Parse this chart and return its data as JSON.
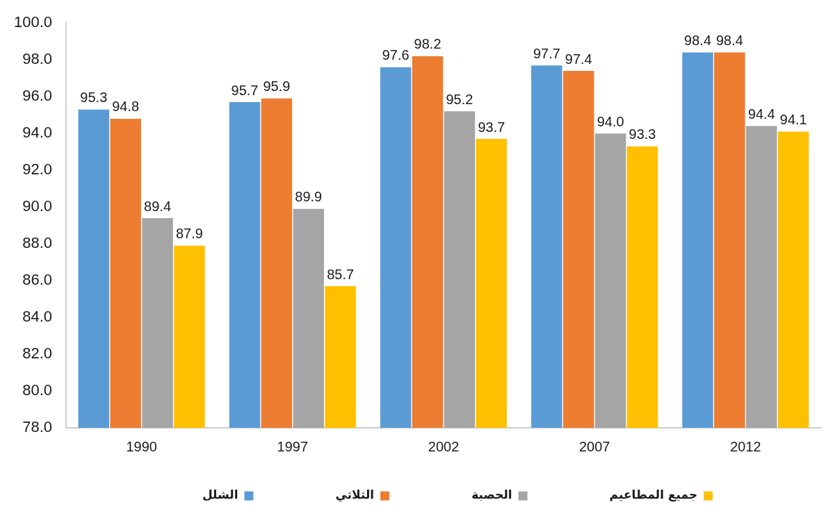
{
  "chart_data": {
    "type": "bar",
    "categories": [
      "1990",
      "1997",
      "2002",
      "2007",
      "2012"
    ],
    "series": [
      {
        "name": "الشلل",
        "color": "#5b9bd5",
        "values": [
          95.3,
          95.7,
          97.6,
          97.7,
          98.4
        ],
        "value_labels": [
          "95.3",
          "95.7",
          "97.6",
          "97.7",
          "98.4"
        ]
      },
      {
        "name": "الثلاثي",
        "color": "#ed7d31",
        "values": [
          94.8,
          95.9,
          98.2,
          97.4,
          98.4
        ],
        "value_labels": [
          "94.8",
          "95.9",
          "98.2",
          "97.4",
          "98.4"
        ]
      },
      {
        "name": "الحصبة",
        "color": "#a5a5a5",
        "values": [
          89.4,
          89.9,
          95.2,
          94.0,
          94.4
        ],
        "value_labels": [
          "89.4",
          "89.9",
          "95.2",
          "94.0",
          "94.4"
        ]
      },
      {
        "name": "جميع المطاعيم",
        "color": "#ffc000",
        "values": [
          87.9,
          85.7,
          93.7,
          93.3,
          94.1
        ],
        "value_labels": [
          "87.9",
          "85.7",
          "93.7",
          "93.3",
          "94.1"
        ]
      }
    ],
    "ylim": [
      78,
      100
    ],
    "yticks": [
      {
        "value": 78,
        "label": "78.0"
      },
      {
        "value": 80,
        "label": "80.0"
      },
      {
        "value": 82,
        "label": "82.0"
      },
      {
        "value": 84,
        "label": "84.0"
      },
      {
        "value": 86,
        "label": "86.0"
      },
      {
        "value": 88,
        "label": "88.0"
      },
      {
        "value": 90,
        "label": "90.0"
      },
      {
        "value": 92,
        "label": "92.0"
      },
      {
        "value": 94,
        "label": "94.0"
      },
      {
        "value": 96,
        "label": "96.0"
      },
      {
        "value": 98,
        "label": "98.0"
      },
      {
        "value": 100,
        "label": "100.0"
      }
    ],
    "legend": "bottom"
  }
}
